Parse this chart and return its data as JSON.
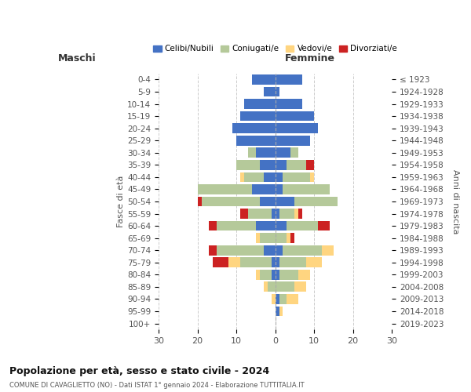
{
  "age_groups": [
    "0-4",
    "5-9",
    "10-14",
    "15-19",
    "20-24",
    "25-29",
    "30-34",
    "35-39",
    "40-44",
    "45-49",
    "50-54",
    "55-59",
    "60-64",
    "65-69",
    "70-74",
    "75-79",
    "80-84",
    "85-89",
    "90-94",
    "95-99",
    "100+"
  ],
  "birth_years": [
    "2019-2023",
    "2014-2018",
    "2009-2013",
    "2004-2008",
    "1999-2003",
    "1994-1998",
    "1989-1993",
    "1984-1988",
    "1979-1983",
    "1974-1978",
    "1969-1973",
    "1964-1968",
    "1959-1963",
    "1954-1958",
    "1949-1953",
    "1944-1948",
    "1939-1943",
    "1934-1938",
    "1929-1933",
    "1924-1928",
    "≤ 1923"
  ],
  "colors": {
    "celibe": "#4472C4",
    "coniugato": "#B5C99A",
    "vedovo": "#FFD580",
    "divorziato": "#CC2222"
  },
  "males": {
    "celibe": [
      6,
      3,
      8,
      9,
      11,
      10,
      5,
      4,
      3,
      6,
      4,
      1,
      5,
      0,
      3,
      1,
      1,
      0,
      0,
      0,
      0
    ],
    "coniugato": [
      0,
      0,
      0,
      0,
      0,
      0,
      2,
      6,
      5,
      14,
      15,
      6,
      10,
      4,
      12,
      8,
      3,
      2,
      0,
      0,
      0
    ],
    "vedovo": [
      0,
      0,
      0,
      0,
      0,
      0,
      0,
      0,
      1,
      0,
      0,
      0,
      0,
      1,
      0,
      3,
      1,
      1,
      1,
      0,
      0
    ],
    "divorziato": [
      0,
      0,
      0,
      0,
      0,
      0,
      0,
      0,
      0,
      0,
      1,
      2,
      2,
      0,
      2,
      4,
      0,
      0,
      0,
      0,
      0
    ]
  },
  "females": {
    "celibe": [
      7,
      1,
      7,
      10,
      11,
      9,
      4,
      3,
      2,
      2,
      5,
      1,
      3,
      0,
      2,
      1,
      1,
      0,
      1,
      1,
      0
    ],
    "coniugato": [
      0,
      0,
      0,
      0,
      0,
      0,
      2,
      5,
      7,
      12,
      11,
      4,
      8,
      3,
      10,
      7,
      5,
      5,
      2,
      0,
      0
    ],
    "vedovo": [
      0,
      0,
      0,
      0,
      0,
      0,
      0,
      0,
      1,
      0,
      0,
      1,
      0,
      1,
      3,
      4,
      3,
      3,
      3,
      1,
      0
    ],
    "divorziato": [
      0,
      0,
      0,
      0,
      0,
      0,
      0,
      2,
      0,
      0,
      0,
      1,
      3,
      1,
      0,
      0,
      0,
      0,
      0,
      0,
      0
    ]
  },
  "xlim": 30,
  "title": "Popolazione per età, sesso e stato civile - 2024",
  "subtitle": "COMUNE DI CAVAGLIETTO (NO) - Dati ISTAT 1° gennaio 2024 - Elaborazione TUTTITALIA.IT",
  "ylabel_left": "Fasce di età",
  "ylabel_right": "Anni di nascita",
  "xlabel_left": "Maschi",
  "xlabel_right": "Femmine",
  "legend_labels": [
    "Celibi/Nubili",
    "Coniugati/e",
    "Vedovi/e",
    "Divorziati/e"
  ],
  "background_color": "#FFFFFF"
}
